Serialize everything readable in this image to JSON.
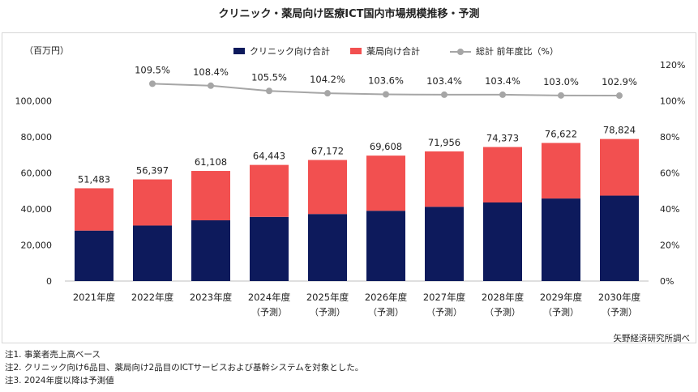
{
  "title": "クリニック・薬局向け医療ICT国内市場規模推移・予測",
  "unit_label": "（百万円）",
  "source": "矢野経済研究所調べ",
  "notes": [
    "注1.  事業者売上高ベース",
    "注2.  クリニック向け6品目、薬局向け2品目のICTサービスおよび基幹システムを対象とした。",
    "注3.  2024年度以降は予測値"
  ],
  "colors": {
    "clinic": "#0d1a5c",
    "pharmacy": "#f25050",
    "growth": "#a6a6a6"
  },
  "chart_data": {
    "type": "bar",
    "stacked": true,
    "categories": [
      "2021年度",
      "2022年度",
      "2023年度",
      "2024年度",
      "2025年度",
      "2026年度",
      "2027年度",
      "2028年度",
      "2029年度",
      "2030年度"
    ],
    "category_sub": [
      "",
      "",
      "",
      "（予測）",
      "（予測）",
      "（予測）",
      "（予測）",
      "（予測）",
      "（予測）",
      "（予測）"
    ],
    "series": [
      {
        "name": "クリニック向け合計",
        "values": [
          28000,
          30800,
          33700,
          35600,
          37200,
          39000,
          41200,
          43600,
          45800,
          47400
        ]
      },
      {
        "name": "薬局向け合計",
        "values": [
          23483,
          25597,
          27408,
          28843,
          29972,
          30608,
          30756,
          30773,
          30822,
          31424
        ]
      }
    ],
    "totals": [
      51483,
      56397,
      61108,
      64443,
      67172,
      69608,
      71956,
      74373,
      76622,
      78824
    ],
    "totals_labels": [
      "51,483",
      "56,397",
      "61,108",
      "64,443",
      "67,172",
      "69,608",
      "71,956",
      "74,373",
      "76,622",
      "78,824"
    ],
    "line_series": {
      "name": "総計 前年度比（%）",
      "values": [
        null,
        109.5,
        108.4,
        105.5,
        104.2,
        103.6,
        103.4,
        103.4,
        103.0,
        102.9
      ],
      "labels": [
        "",
        "109.5%",
        "108.4%",
        "105.5%",
        "104.2%",
        "103.6%",
        "103.4%",
        "103.4%",
        "103.0%",
        "102.9%"
      ]
    },
    "ylim": [
      0,
      120000
    ],
    "yticks": [
      0,
      20000,
      40000,
      60000,
      80000,
      100000
    ],
    "ytick_labels": [
      "0",
      "20,000",
      "40,000",
      "60,000",
      "80,000",
      "100,000"
    ],
    "y2lim": [
      0,
      120
    ],
    "y2ticks": [
      0,
      20,
      40,
      60,
      80,
      100,
      120
    ],
    "y2tick_labels": [
      "0%",
      "20%",
      "40%",
      "60%",
      "80%",
      "100%",
      "120%"
    ],
    "legend_position": "top"
  }
}
